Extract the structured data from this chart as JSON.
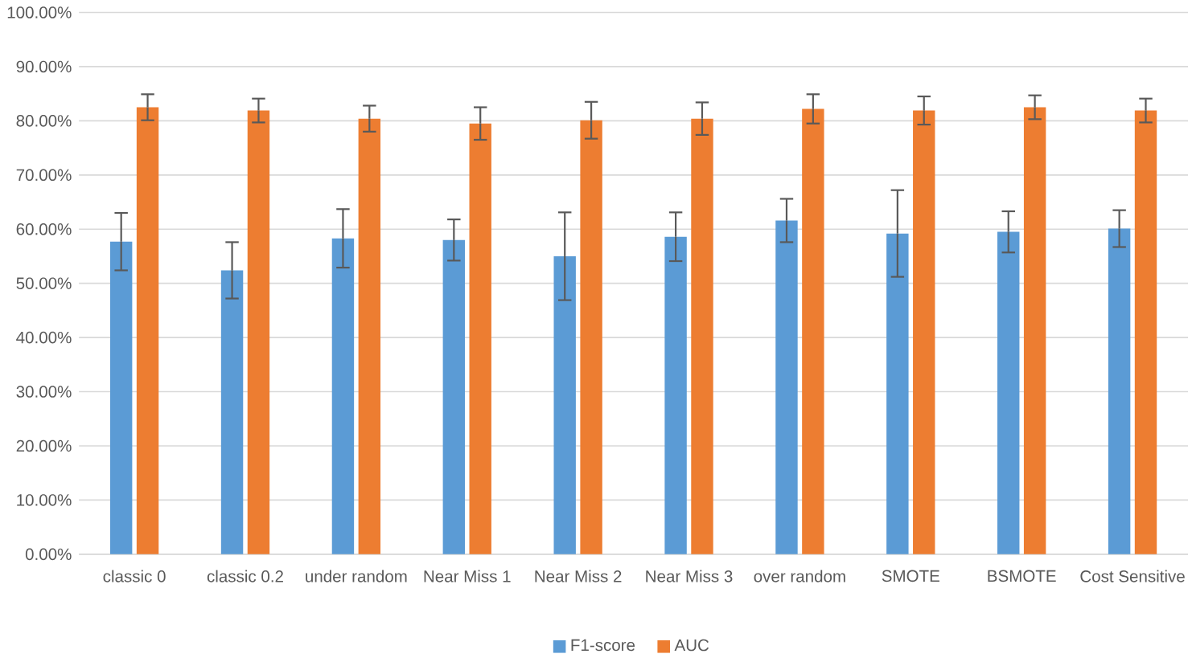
{
  "chart_data": {
    "type": "bar",
    "categories": [
      "classic 0",
      "classic 0.2",
      "under random",
      "Near Miss 1",
      "Near Miss 2",
      "Near Miss 3",
      "over random",
      "SMOTE",
      "BSMOTE",
      "Cost Sensitive"
    ],
    "series": [
      {
        "name": "F1-score",
        "color": "#5b9bd5",
        "values": [
          57.7,
          52.4,
          58.3,
          58.0,
          55.0,
          58.6,
          61.6,
          59.2,
          59.5,
          60.1
        ],
        "errors": [
          5.3,
          5.2,
          5.4,
          3.8,
          8.1,
          4.5,
          4.0,
          8.0,
          3.8,
          3.4
        ]
      },
      {
        "name": "AUC",
        "color": "#ed7d31",
        "values": [
          82.5,
          81.9,
          80.4,
          79.5,
          80.1,
          80.4,
          82.2,
          81.9,
          82.5,
          81.9
        ],
        "errors": [
          2.4,
          2.2,
          2.4,
          3.0,
          3.4,
          3.0,
          2.7,
          2.6,
          2.2,
          2.2
        ]
      }
    ],
    "ylim": [
      0,
      100
    ],
    "yticks": [
      {
        "value": 0,
        "label": "0.00%"
      },
      {
        "value": 10,
        "label": "10.00%"
      },
      {
        "value": 20,
        "label": "20.00%"
      },
      {
        "value": 30,
        "label": "30.00%"
      },
      {
        "value": 40,
        "label": "40.00%"
      },
      {
        "value": 50,
        "label": "50.00%"
      },
      {
        "value": 60,
        "label": "60.00%"
      },
      {
        "value": 70,
        "label": "70.00%"
      },
      {
        "value": 80,
        "label": "80.00%"
      },
      {
        "value": 90,
        "label": "90.00%"
      },
      {
        "value": 100,
        "label": "100.00%"
      }
    ],
    "grid": "y",
    "legend": "bottom"
  }
}
